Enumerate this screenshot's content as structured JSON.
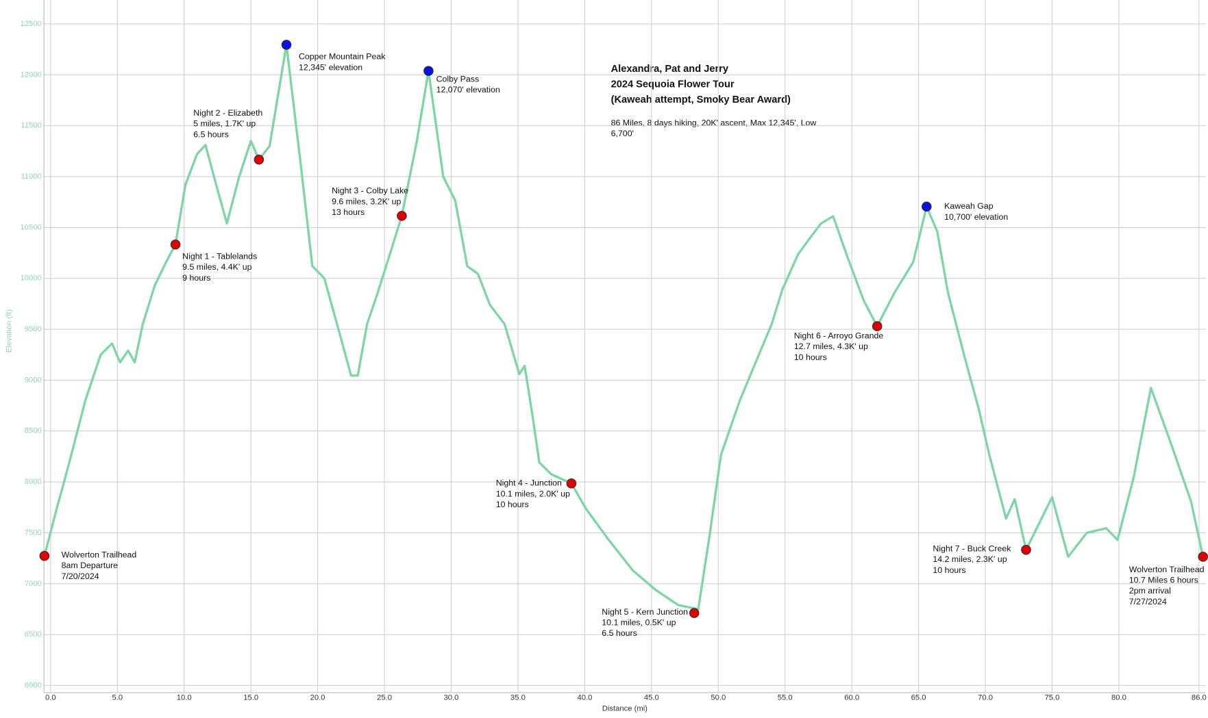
{
  "chart_data": {
    "type": "line",
    "title": [
      "Alexandra, Pat and Jerry",
      "2024 Sequoia Flower Tour",
      "(Kaweah attempt, Smoky Bear Award)"
    ],
    "subtitle": "86 Miles, 8 days hiking, 20K' ascent, Max 12,345', Low 6,700'",
    "xlabel": "Distance (mi)",
    "ylabel": "Elevation (ft)",
    "xlim": [
      -0.5,
      86.5
    ],
    "ylim": [
      5930,
      12735
    ],
    "xticks": [
      {
        "value": 0,
        "label": "0.0"
      },
      {
        "value": 5,
        "label": "5.0"
      },
      {
        "value": 10,
        "label": "10.0"
      },
      {
        "value": 15,
        "label": "15.0"
      },
      {
        "value": 20,
        "label": "20.0"
      },
      {
        "value": 25,
        "label": "25.0"
      },
      {
        "value": 30,
        "label": "30.0"
      },
      {
        "value": 35,
        "label": "35.0"
      },
      {
        "value": 40,
        "label": "40.0"
      },
      {
        "value": 45,
        "label": "45.0"
      },
      {
        "value": 50,
        "label": "50.0"
      },
      {
        "value": 55,
        "label": "55.0"
      },
      {
        "value": 60,
        "label": "60.0"
      },
      {
        "value": 65,
        "label": "65.0"
      },
      {
        "value": 70,
        "label": "70.0"
      },
      {
        "value": 75,
        "label": "75.0"
      },
      {
        "value": 80,
        "label": "80.0"
      },
      {
        "value": 86,
        "label": "86.0"
      }
    ],
    "yticks": [
      6000,
      6500,
      7000,
      7500,
      8000,
      8500,
      9000,
      9500,
      10000,
      10500,
      11000,
      11500,
      12000,
      12500
    ],
    "grid": true,
    "series": [
      {
        "color": "#7fd6a4",
        "x": [
          -0.46,
          0.3,
          1.4,
          2.6,
          3.75,
          4.6,
          5.2,
          5.8,
          6.3,
          6.9,
          7.8,
          8.65,
          9.35,
          10.1,
          10.96,
          11.6,
          12.4,
          13.2,
          14.1,
          15.0,
          15.6,
          16.4,
          17.66,
          18.75,
          19.6,
          20.5,
          21.6,
          22.5,
          23.0,
          23.7,
          24.5,
          25.4,
          26.3,
          27.4,
          28.3,
          28.85,
          29.4,
          30.3,
          31.2,
          32.0,
          32.9,
          34.0,
          35.1,
          35.5,
          36.1,
          36.6,
          37.5,
          39.0,
          40.1,
          41.8,
          43.6,
          45.3,
          47.0,
          48.5,
          49.3,
          50.2,
          51.6,
          52.8,
          54.0,
          54.8,
          55.97,
          56.8,
          57.7,
          58.6,
          59.7,
          60.9,
          61.9,
          63.2,
          64.6,
          65.6,
          66.4,
          67.2,
          68.4,
          69.5,
          70.3,
          71.55,
          72.2,
          73.05,
          75.0,
          76.2,
          77.6,
          79.05,
          79.9,
          81.1,
          82.4,
          84.0,
          85.4,
          86.3
        ],
        "values": [
          7273,
          7660,
          8190,
          8800,
          9250,
          9360,
          9175,
          9290,
          9175,
          9550,
          9930,
          10160,
          10333,
          10920,
          11220,
          11310,
          10920,
          10540,
          10990,
          11350,
          11167,
          11300,
          12295,
          11100,
          10120,
          10000,
          9480,
          9045,
          9045,
          9550,
          9860,
          10235,
          10614,
          11330,
          12038,
          11520,
          11000,
          10765,
          10120,
          10045,
          9740,
          9550,
          9060,
          9140,
          8640,
          8190,
          8075,
          7985,
          7735,
          7430,
          7130,
          6940,
          6790,
          6750,
          7430,
          8265,
          8795,
          9175,
          9550,
          9890,
          10235,
          10385,
          10540,
          10610,
          10200,
          9780,
          9530,
          9860,
          10160,
          10705,
          10460,
          9860,
          9250,
          8720,
          8265,
          7640,
          7830,
          7333,
          7850,
          7265,
          7500,
          7545,
          7430,
          8040,
          8925,
          8340,
          7810,
          7265
        ]
      }
    ],
    "markers": [
      {
        "x": -0.46,
        "y": 7273,
        "color": "#e00000",
        "label": [
          "Wolverton Trailhead",
          "8am Departure",
          "7/20/2024"
        ]
      },
      {
        "x": 9.35,
        "y": 10333,
        "color": "#e00000",
        "label": [
          "Night 1 - Tablelands",
          "9.5 miles, 4.4K' up",
          "9 hours"
        ]
      },
      {
        "x": 15.6,
        "y": 11167,
        "color": "#e00000",
        "label": [
          "Night 2 - Elizabeth",
          "5 miles, 1.7K' up",
          "6.5 hours"
        ]
      },
      {
        "x": 17.66,
        "y": 12295,
        "color": "#0a10e0",
        "label": [
          "Copper Mountain Peak",
          "12,345' elevation"
        ]
      },
      {
        "x": 26.3,
        "y": 10614,
        "color": "#e00000",
        "label": [
          "Night 3 - Colby Lake",
          "9.6 miles, 3.2K' up",
          "13 hours"
        ]
      },
      {
        "x": 28.3,
        "y": 12038,
        "color": "#0a10e0",
        "label": [
          "Colby Pass",
          "12,070' elevation"
        ]
      },
      {
        "x": 39.0,
        "y": 7985,
        "color": "#e00000",
        "label": [
          "Night 4 - Junction",
          "10.1 miles, 2.0K' up",
          "10 hours"
        ]
      },
      {
        "x": 48.2,
        "y": 6712,
        "color": "#e00000",
        "label": [
          "Night 5 - Kern Junction",
          "10.1 miles, 0.5K' up",
          "6.5 hours"
        ]
      },
      {
        "x": 61.9,
        "y": 9530,
        "color": "#e00000",
        "label": [
          "Night 6 - Arroyo Grande",
          "12.7 miles, 4.3K' up",
          "10 hours"
        ]
      },
      {
        "x": 65.6,
        "y": 10705,
        "color": "#0a10e0",
        "label": [
          "Kaweah Gap",
          "10,700' elevation"
        ]
      },
      {
        "x": 73.05,
        "y": 7333,
        "color": "#e00000",
        "label": [
          "Night 7 - Buck Creek",
          "14.2 miles, 2.3K' up",
          "10 hours"
        ]
      },
      {
        "x": 86.3,
        "y": 7265,
        "color": "#e00000",
        "label": [
          "Wolverton Trailhead",
          "10.7 Miles 6 hours",
          "2pm arrival",
          "7/27/2024"
        ]
      }
    ]
  }
}
